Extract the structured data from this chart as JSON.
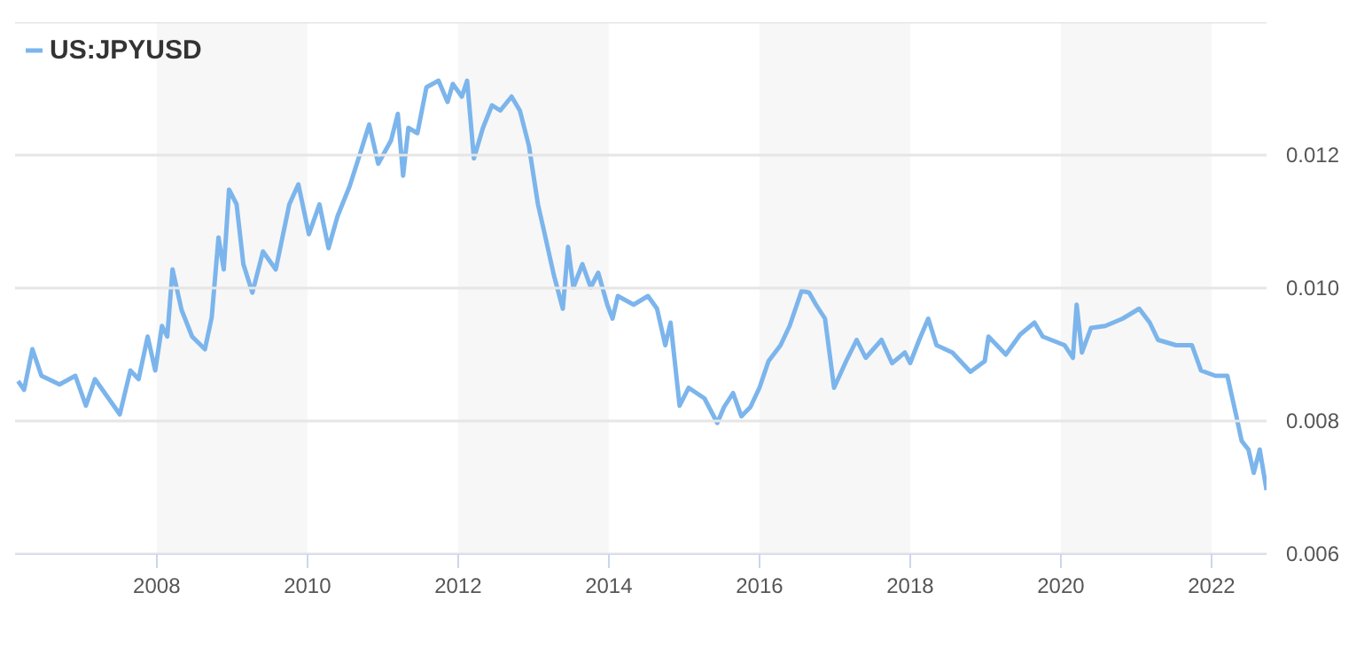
{
  "chart_data": {
    "type": "line",
    "legend": "top left",
    "grid": "y",
    "marker": "none",
    "line_style": "solid",
    "xlim": [
      2006.12,
      2022.73
    ],
    "ylim": [
      0.006,
      0.014
    ],
    "xticks": [
      2008,
      2010,
      2012,
      2014,
      2016,
      2018,
      2020,
      2022
    ],
    "yticks": [
      0.006,
      0.008,
      {
        "value": 0.01,
        "label": "0.010"
      },
      0.012,
      {
        "value": 0.014,
        "label": null
      }
    ],
    "bands": [
      {
        "axis": "x",
        "from": 2008,
        "to": 2010,
        "color": "#f7f7f7"
      },
      {
        "axis": "x",
        "from": 2012,
        "to": 2014,
        "color": "#f7f7f7"
      },
      {
        "axis": "x",
        "from": 2016,
        "to": 2018,
        "color": "#f7f7f7"
      },
      {
        "axis": "x",
        "from": 2020,
        "to": 2022,
        "color": "#f7f7f7"
      }
    ],
    "series": [
      {
        "name": "US:JPYUSD",
        "color": "#7cb5ec",
        "x": [
          2006.16,
          2006.24,
          2006.35,
          2006.47,
          2006.71,
          2006.92,
          2007.06,
          2007.18,
          2007.51,
          2007.65,
          2007.76,
          2007.88,
          2007.98,
          2008.07,
          2008.14,
          2008.21,
          2008.33,
          2008.47,
          2008.64,
          2008.73,
          2008.82,
          2008.89,
          2008.96,
          2009.06,
          2009.15,
          2009.27,
          2009.41,
          2009.58,
          2009.76,
          2009.88,
          2010.02,
          2010.16,
          2010.28,
          2010.4,
          2010.56,
          2010.71,
          2010.82,
          2010.94,
          2011.11,
          2011.2,
          2011.27,
          2011.34,
          2011.46,
          2011.58,
          2011.74,
          2011.86,
          2011.93,
          2012.05,
          2012.12,
          2012.21,
          2012.33,
          2012.45,
          2012.56,
          2012.71,
          2012.82,
          2012.94,
          2013.06,
          2013.15,
          2013.27,
          2013.39,
          2013.46,
          2013.53,
          2013.65,
          2013.76,
          2013.86,
          2013.98,
          2014.05,
          2014.12,
          2014.33,
          2014.52,
          2014.64,
          2014.75,
          2014.82,
          2014.94,
          2015.06,
          2015.27,
          2015.44,
          2015.53,
          2015.65,
          2015.76,
          2015.88,
          2016.0,
          2016.12,
          2016.28,
          2016.4,
          2016.56,
          2016.66,
          2016.75,
          2016.87,
          2016.99,
          2017.15,
          2017.29,
          2017.41,
          2017.62,
          2017.76,
          2017.93,
          2018.0,
          2018.12,
          2018.24,
          2018.35,
          2018.56,
          2018.8,
          2018.99,
          2019.04,
          2019.27,
          2019.46,
          2019.65,
          2019.76,
          2020.05,
          2020.16,
          2020.21,
          2020.28,
          2020.4,
          2020.59,
          2020.82,
          2021.04,
          2021.18,
          2021.29,
          2021.53,
          2021.74,
          2021.86,
          2022.05,
          2022.21,
          2022.33,
          2022.4,
          2022.49,
          2022.56,
          2022.64,
          2022.73
        ],
        "values": [
          0.0086,
          0.00847,
          0.00908,
          0.00868,
          0.00855,
          0.00868,
          0.00823,
          0.00863,
          0.0081,
          0.00876,
          0.00863,
          0.00927,
          0.00876,
          0.00943,
          0.00927,
          0.01028,
          0.00967,
          0.00927,
          0.00908,
          0.00956,
          0.01076,
          0.01028,
          0.01148,
          0.01126,
          0.01036,
          0.00993,
          0.01055,
          0.01028,
          0.01126,
          0.01156,
          0.01081,
          0.01126,
          0.0106,
          0.01108,
          0.01153,
          0.01206,
          0.01246,
          0.01187,
          0.01222,
          0.01262,
          0.01169,
          0.01241,
          0.01233,
          0.01302,
          0.01312,
          0.0128,
          0.01307,
          0.01288,
          0.01312,
          0.01195,
          0.01241,
          0.01275,
          0.01267,
          0.01288,
          0.01267,
          0.01214,
          0.01126,
          0.01081,
          0.0102,
          0.00969,
          0.01062,
          0.01001,
          0.01036,
          0.01001,
          0.01023,
          0.00975,
          0.00954,
          0.00988,
          0.00975,
          0.00988,
          0.00969,
          0.00914,
          0.00948,
          0.00823,
          0.0085,
          0.00834,
          0.00797,
          0.00821,
          0.00842,
          0.00807,
          0.00821,
          0.0085,
          0.0089,
          0.00914,
          0.00943,
          0.00996,
          0.00993,
          0.00975,
          0.00954,
          0.0085,
          0.0089,
          0.00922,
          0.00895,
          0.00922,
          0.00887,
          0.00903,
          0.00887,
          0.00922,
          0.00954,
          0.00914,
          0.00903,
          0.00874,
          0.0089,
          0.00927,
          0.009,
          0.0093,
          0.00948,
          0.00927,
          0.00914,
          0.00895,
          0.00975,
          0.00903,
          0.0094,
          0.00943,
          0.00954,
          0.00969,
          0.00948,
          0.00922,
          0.00914,
          0.00914,
          0.00876,
          0.00868,
          0.00868,
          0.00807,
          0.0077,
          0.00757,
          0.00722,
          0.00757,
          0.00696
        ]
      }
    ]
  }
}
